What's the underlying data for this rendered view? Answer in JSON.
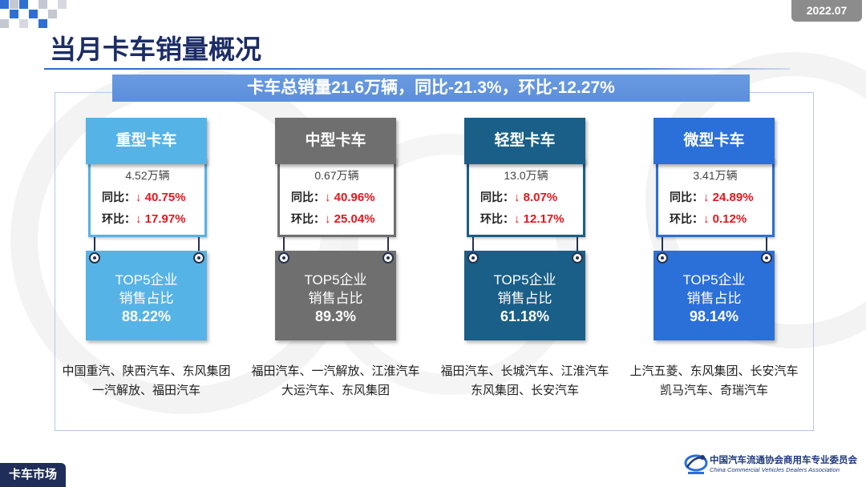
{
  "header": {
    "date": "2022.07",
    "title": "当月卡车销量概况"
  },
  "banner": {
    "text": "卡车总销量21.6万辆，同比-21.3%，环比-12.27%"
  },
  "columns": [
    {
      "name": "重型卡车",
      "color": "#56b3e6",
      "volume": "4.52万辆",
      "yoy_label": "同比：",
      "yoy_value": "↓ 40.75%",
      "mom_label": "环比：",
      "mom_value": "↓ 17.97%",
      "top5_label": [
        "TOP5企业",
        "销售占比"
      ],
      "top5_share": "88.22%",
      "companies": [
        "中国重汽、陕西汽车、东风集团",
        "一汽解放、福田汽车"
      ]
    },
    {
      "name": "中型卡车",
      "color": "#6f6f6f",
      "volume": "0.67万辆",
      "yoy_label": "同比：",
      "yoy_value": "↓ 40.96%",
      "mom_label": "环比：",
      "mom_value": "↓ 25.04%",
      "top5_label": [
        "TOP5企业",
        "销售占比"
      ],
      "top5_share": "89.3%",
      "companies": [
        "福田汽车、一汽解放、江淮汽车",
        "大运汽车、东风集团"
      ]
    },
    {
      "name": "轻型卡车",
      "color": "#195f87",
      "volume": "13.0万辆",
      "yoy_label": "同比：",
      "yoy_value": "↓ 8.07%",
      "mom_label": "环比：",
      "mom_value": "↓ 12.17%",
      "top5_label": [
        "TOP5企业",
        "销售占比"
      ],
      "top5_share": "61.18%",
      "companies": [
        "福田汽车、长城汽车、江淮汽车",
        "东风集团、长安汽车"
      ]
    },
    {
      "name": "微型卡车",
      "color": "#2b6fd9",
      "volume": "3.41万辆",
      "yoy_label": "同比：",
      "yoy_value": "↓ 24.89%",
      "mom_label": "环比：",
      "mom_value": "↓ 0.12%",
      "top5_label": [
        "TOP5企业",
        "销售占比"
      ],
      "top5_share": "98.14%",
      "companies": [
        "上汽五菱、东风集团、长安汽车",
        "凯马汽车、奇瑞汽车"
      ]
    }
  ],
  "footer": {
    "section": "卡车市场",
    "org_cn": "中国汽车流通协会商用车专业委员会",
    "org_en": "China Commercial Vehicles Dealers Association",
    "logo_icon": "association-logo-icon"
  },
  "colors": {
    "decline": "#e5161d",
    "banner": "#5b8fdb",
    "title": "#1c2d66",
    "navy": "#1f2d58"
  }
}
